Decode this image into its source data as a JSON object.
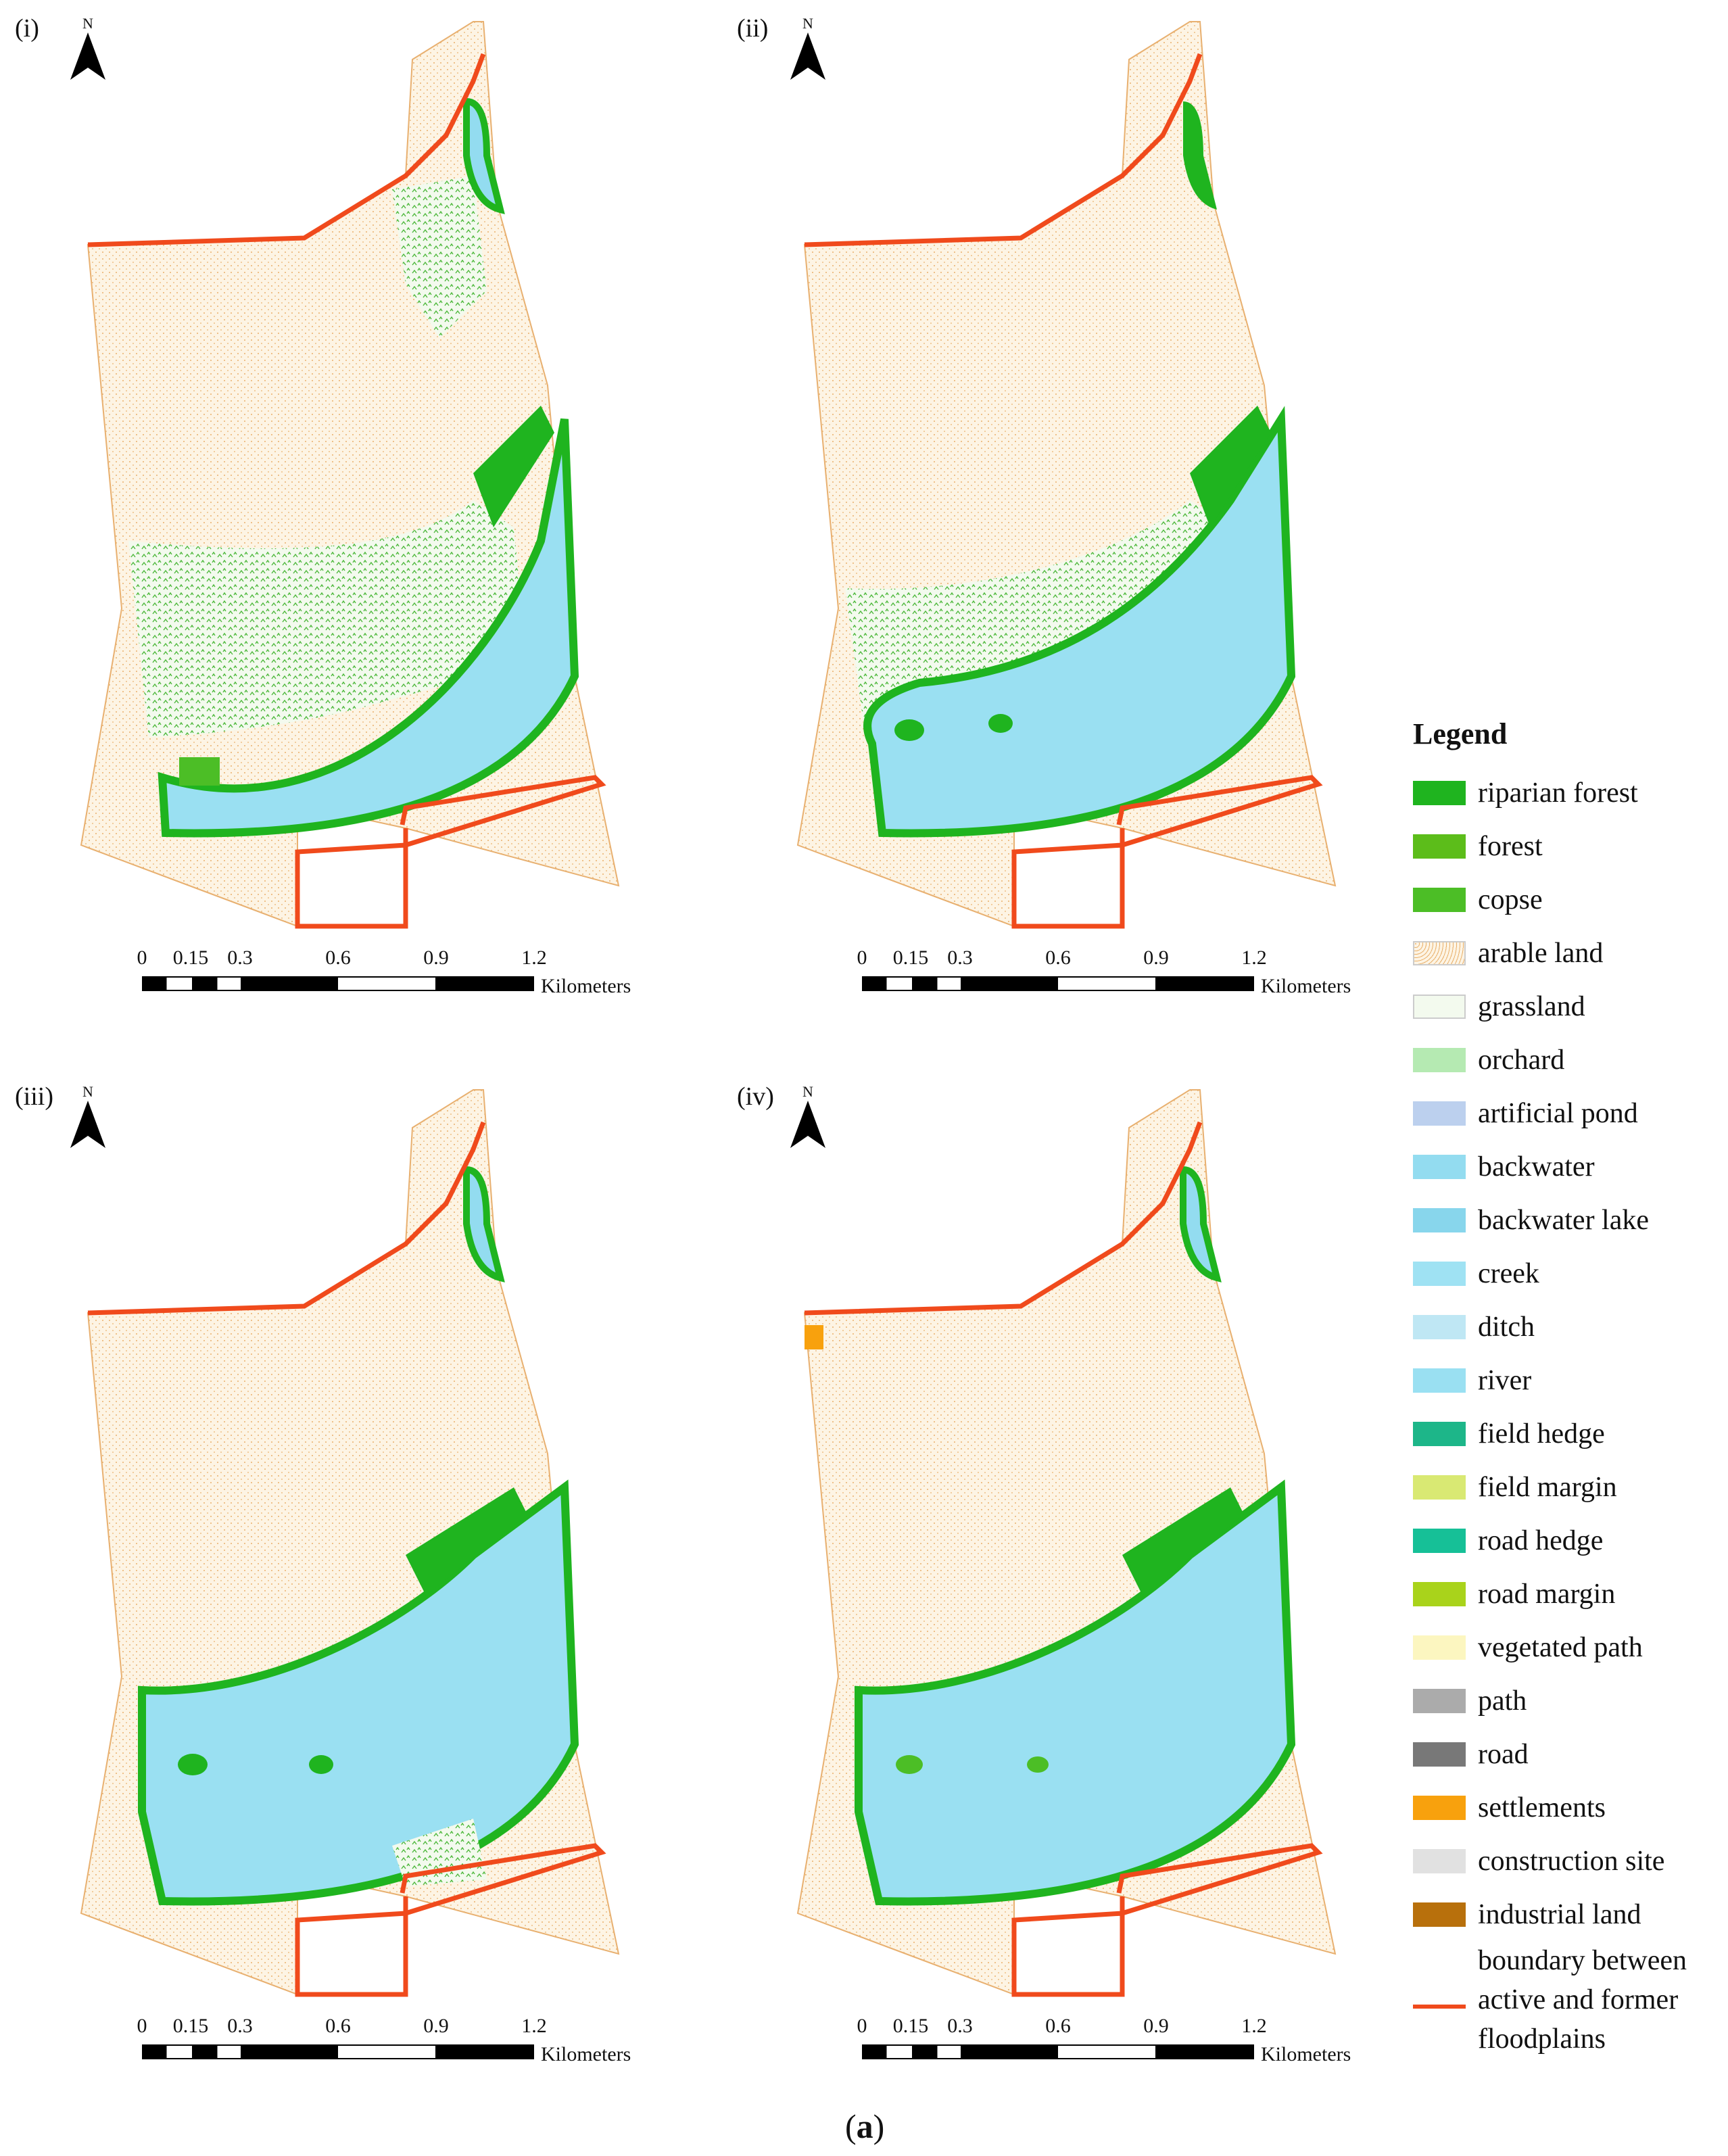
{
  "panels": [
    {
      "label": "(i)"
    },
    {
      "label": "(ii)"
    },
    {
      "label": "(iii)"
    },
    {
      "label": "(iv)"
    }
  ],
  "north_arrow": {
    "letter": "N",
    "icon": "north-arrow-icon"
  },
  "scale_bar": {
    "ticks": [
      "0",
      "0.15",
      "0.3",
      "0.6",
      "0.9",
      "1.2"
    ],
    "unit": "Kilometers"
  },
  "legend": {
    "title": "Legend",
    "items": [
      {
        "label": "riparian forest",
        "color": "#1fb41f"
      },
      {
        "label": "forest",
        "color": "#5cbd1a"
      },
      {
        "label": "copse",
        "color": "#4cbe26"
      },
      {
        "label": "arable land",
        "color": "#fbf0dc"
      },
      {
        "label": "grassland",
        "color": "#e6f3d8"
      },
      {
        "label": "orchard",
        "color": "#b5eab2"
      },
      {
        "label": "artificial pond",
        "color": "#bcd0ee"
      },
      {
        "label": "backwater",
        "color": "#93dcf0"
      },
      {
        "label": "backwater lake",
        "color": "#88d6ec"
      },
      {
        "label": "creek",
        "color": "#9fe2f3"
      },
      {
        "label": "ditch",
        "color": "#bfe7f4"
      },
      {
        "label": "river",
        "color": "#9ae0f2"
      },
      {
        "label": "field hedge",
        "color": "#1db689"
      },
      {
        "label": "field margin",
        "color": "#d9e973"
      },
      {
        "label": "road hedge",
        "color": "#16c097"
      },
      {
        "label": "road margin",
        "color": "#a9d31b"
      },
      {
        "label": "vegetated path",
        "color": "#fcf6c0"
      },
      {
        "label": "path",
        "color": "#ababab"
      },
      {
        "label": "road",
        "color": "#787878"
      },
      {
        "label": "settlements",
        "color": "#f8a10d"
      },
      {
        "label": "construction site",
        "color": "#e1e1e1"
      },
      {
        "label": "industrial land",
        "color": "#b8700c"
      }
    ],
    "boundary": {
      "line1": "boundary between",
      "line2": "active and former",
      "line3": "floodplains",
      "color": "#f04a1c"
    }
  },
  "caption": {
    "open": "(",
    "letter": "a",
    "close": ")"
  }
}
